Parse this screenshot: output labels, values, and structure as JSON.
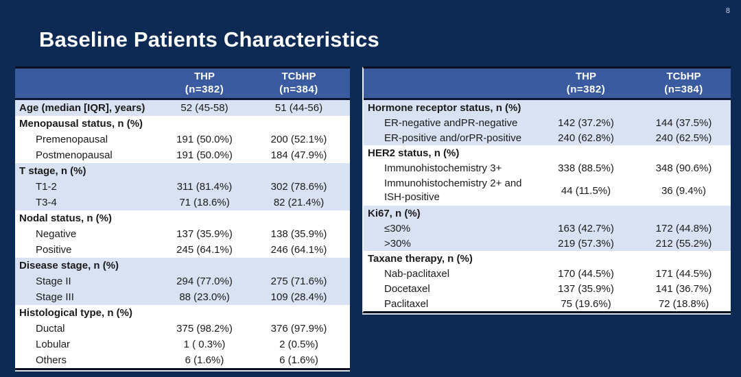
{
  "page_number": "8",
  "title": "Baseline Patients Characteristics",
  "colors": {
    "background": "#0d2a55",
    "table_header": "#3a5b9f",
    "band_blue": "#d9e2f3",
    "row_white": "#ffffff",
    "title_text": "#ffffff",
    "body_text": "#1a1a1a"
  },
  "left_table": {
    "header": {
      "thp": "THP",
      "thp_n": "(n=382)",
      "tcbhp": "TCbHP",
      "tcbhp_n": "(n=384)"
    },
    "rows": [
      {
        "label": "Age (median [IQR], years)",
        "kind": "section",
        "band": "blue",
        "thp": "52 (45-58)",
        "tcbhp": "51 (44-56)"
      },
      {
        "label": "Menopausal status, n (%)",
        "kind": "section",
        "band": "white",
        "thp": "",
        "tcbhp": ""
      },
      {
        "label": "Premenopausal",
        "kind": "item",
        "band": "white",
        "thp": "191 (50.0%)",
        "tcbhp": "200 (52.1%)"
      },
      {
        "label": "Postmenopausal",
        "kind": "item",
        "band": "white",
        "thp": "191 (50.0%)",
        "tcbhp": "184 (47.9%)"
      },
      {
        "label": "T stage, n (%)",
        "kind": "section",
        "band": "blue",
        "thp": "",
        "tcbhp": ""
      },
      {
        "label": "T1-2",
        "kind": "item",
        "band": "blue",
        "thp": "311 (81.4%)",
        "tcbhp": "302 (78.6%)"
      },
      {
        "label": "T3-4",
        "kind": "item",
        "band": "blue",
        "thp": "71 (18.6%)",
        "tcbhp": "82 (21.4%)"
      },
      {
        "label": "Nodal status, n (%)",
        "kind": "section",
        "band": "white",
        "thp": "",
        "tcbhp": ""
      },
      {
        "label": "Negative",
        "kind": "item",
        "band": "white",
        "thp": "137 (35.9%)",
        "tcbhp": "138 (35.9%)"
      },
      {
        "label": "Positive",
        "kind": "item",
        "band": "white",
        "thp": "245 (64.1%)",
        "tcbhp": "246 (64.1%)"
      },
      {
        "label": "Disease stage, n (%)",
        "kind": "section",
        "band": "blue",
        "thp": "",
        "tcbhp": ""
      },
      {
        "label": "Stage II",
        "kind": "item",
        "band": "blue",
        "thp": "294 (77.0%)",
        "tcbhp": "275 (71.6%)"
      },
      {
        "label": "Stage III",
        "kind": "item",
        "band": "blue",
        "thp": "88 (23.0%)",
        "tcbhp": "109 (28.4%)"
      },
      {
        "label": "Histological type, n (%)",
        "kind": "section",
        "band": "white",
        "thp": "",
        "tcbhp": ""
      },
      {
        "label": "Ductal",
        "kind": "item",
        "band": "white",
        "thp": "375 (98.2%)",
        "tcbhp": "376 (97.9%)"
      },
      {
        "label": "Lobular",
        "kind": "item",
        "band": "white",
        "thp": "1 ( 0.3%)",
        "tcbhp": "2 (0.5%)"
      },
      {
        "label": "Others",
        "kind": "item",
        "band": "white",
        "thp": "6 (1.6%)",
        "tcbhp": "6 (1.6%)"
      }
    ]
  },
  "right_table": {
    "header": {
      "thp": "THP",
      "thp_n": "(n=382)",
      "tcbhp": "TCbHP",
      "tcbhp_n": "(n=384)"
    },
    "rows": [
      {
        "label": "Hormone receptor status, n (%)",
        "kind": "section",
        "band": "blue",
        "thp": "",
        "tcbhp": ""
      },
      {
        "label": "ER-negative andPR-negative",
        "kind": "item",
        "band": "blue",
        "thp": "142 (37.2%)",
        "tcbhp": "144 (37.5%)"
      },
      {
        "label": "ER-positive and/orPR-positive",
        "kind": "item",
        "band": "blue",
        "thp": "240 (62.8%)",
        "tcbhp": "240 (62.5%)"
      },
      {
        "label": "HER2 status, n (%)",
        "kind": "section",
        "band": "white",
        "thp": "",
        "tcbhp": ""
      },
      {
        "label": "Immunohistochemistry 3+",
        "kind": "item",
        "band": "white",
        "thp": "338 (88.5%)",
        "tcbhp": "348 (90.6%)"
      },
      {
        "label": "Immunohistochemistry 2+ and ISH-positive",
        "kind": "item",
        "band": "white",
        "thp": "44 (11.5%)",
        "tcbhp": "36 (9.4%)",
        "tall": true
      },
      {
        "label": "Ki67, n (%)",
        "kind": "section",
        "band": "blue",
        "thp": "",
        "tcbhp": ""
      },
      {
        "label": "≤30%",
        "kind": "item",
        "band": "blue",
        "thp": "163 (42.7%)",
        "tcbhp": "172 (44.8%)"
      },
      {
        "label": ">30%",
        "kind": "item",
        "band": "blue",
        "thp": "219 (57.3%)",
        "tcbhp": "212 (55.2%)"
      },
      {
        "label": "Taxane therapy, n (%)",
        "kind": "section",
        "band": "white",
        "thp": "",
        "tcbhp": ""
      },
      {
        "label": "Nab-paclitaxel",
        "kind": "item",
        "band": "white",
        "thp": "170 (44.5%)",
        "tcbhp": "171 (44.5%)"
      },
      {
        "label": "Docetaxel",
        "kind": "item",
        "band": "white",
        "thp": "137 (35.9%)",
        "tcbhp": "141 (36.7%)"
      },
      {
        "label": "Paclitaxel",
        "kind": "item",
        "band": "white",
        "thp": "75 (19.6%)",
        "tcbhp": "72 (18.8%)"
      }
    ]
  }
}
